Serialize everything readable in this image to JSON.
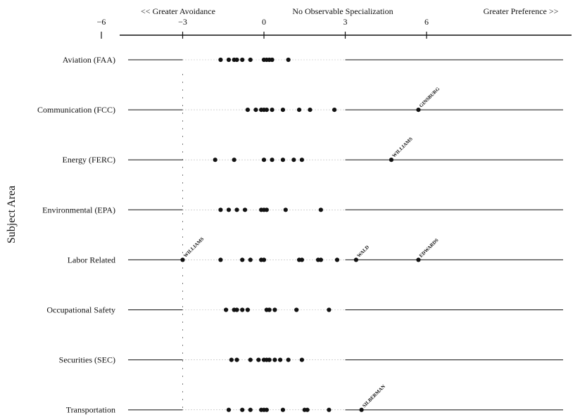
{
  "chart_data": {
    "type": "scatter",
    "header_left": "<< Greater Avoidance",
    "header_center": "No Observable Specialization",
    "header_right": "Greater Preference >>",
    "ylabel": "Subject Area",
    "xlim": [
      -8.5,
      8.2
    ],
    "xticks": [
      -6,
      -3,
      0,
      3,
      6
    ],
    "xtick_labels": [
      "−6",
      "−3",
      "0",
      "3",
      "6"
    ],
    "reference_lines": [
      -3,
      3
    ],
    "categories": [
      "Aviation (FAA)",
      "Communication (FCC)",
      "Energy (FERC)",
      "Environmental (EPA)",
      "Labor Related",
      "Occupational Safety",
      "Securities (SEC)",
      "Transportation"
    ],
    "points": [
      [
        -1.6,
        -1.3,
        -1.1,
        -1.0,
        -0.8,
        -0.5,
        0.0,
        0.1,
        0.2,
        0.3,
        0.9
      ],
      [
        -0.6,
        -0.3,
        -0.1,
        0.0,
        0.1,
        0.3,
        0.7,
        1.3,
        1.7,
        2.6,
        5.7
      ],
      [
        -1.8,
        -1.1,
        0.0,
        0.3,
        0.7,
        1.1,
        1.4,
        4.7
      ],
      [
        -1.6,
        -1.3,
        -1.0,
        -0.7,
        -0.1,
        0.0,
        0.1,
        0.8,
        2.1
      ],
      [
        -3.0,
        -1.6,
        -0.8,
        -0.5,
        -0.1,
        0.0,
        1.3,
        1.4,
        2.0,
        2.1,
        2.7,
        3.4,
        5.7
      ],
      [
        -1.4,
        -1.1,
        -1.0,
        -0.8,
        -0.6,
        0.1,
        0.2,
        0.4,
        1.2,
        2.4
      ],
      [
        -1.2,
        -1.0,
        -0.5,
        -0.2,
        0.0,
        0.1,
        0.2,
        0.4,
        0.6,
        0.9,
        1.4
      ],
      [
        -1.3,
        -0.8,
        -0.5,
        -0.1,
        0.0,
        0.1,
        0.7,
        1.5,
        1.6,
        2.4,
        3.6
      ]
    ],
    "annotations": [
      {
        "category": 1,
        "x": 5.7,
        "label": "GINSBURG"
      },
      {
        "category": 2,
        "x": 4.7,
        "label": "WILLIAMS"
      },
      {
        "category": 4,
        "x": -3.0,
        "label": "WILLIAMS"
      },
      {
        "category": 4,
        "x": 3.4,
        "label": "WALD"
      },
      {
        "category": 4,
        "x": 5.7,
        "label": "EDWARDS"
      },
      {
        "category": 7,
        "x": 3.6,
        "label": "SILBERMAN"
      }
    ],
    "colors": {
      "ink": "#111111",
      "background": "#ffffff"
    }
  }
}
